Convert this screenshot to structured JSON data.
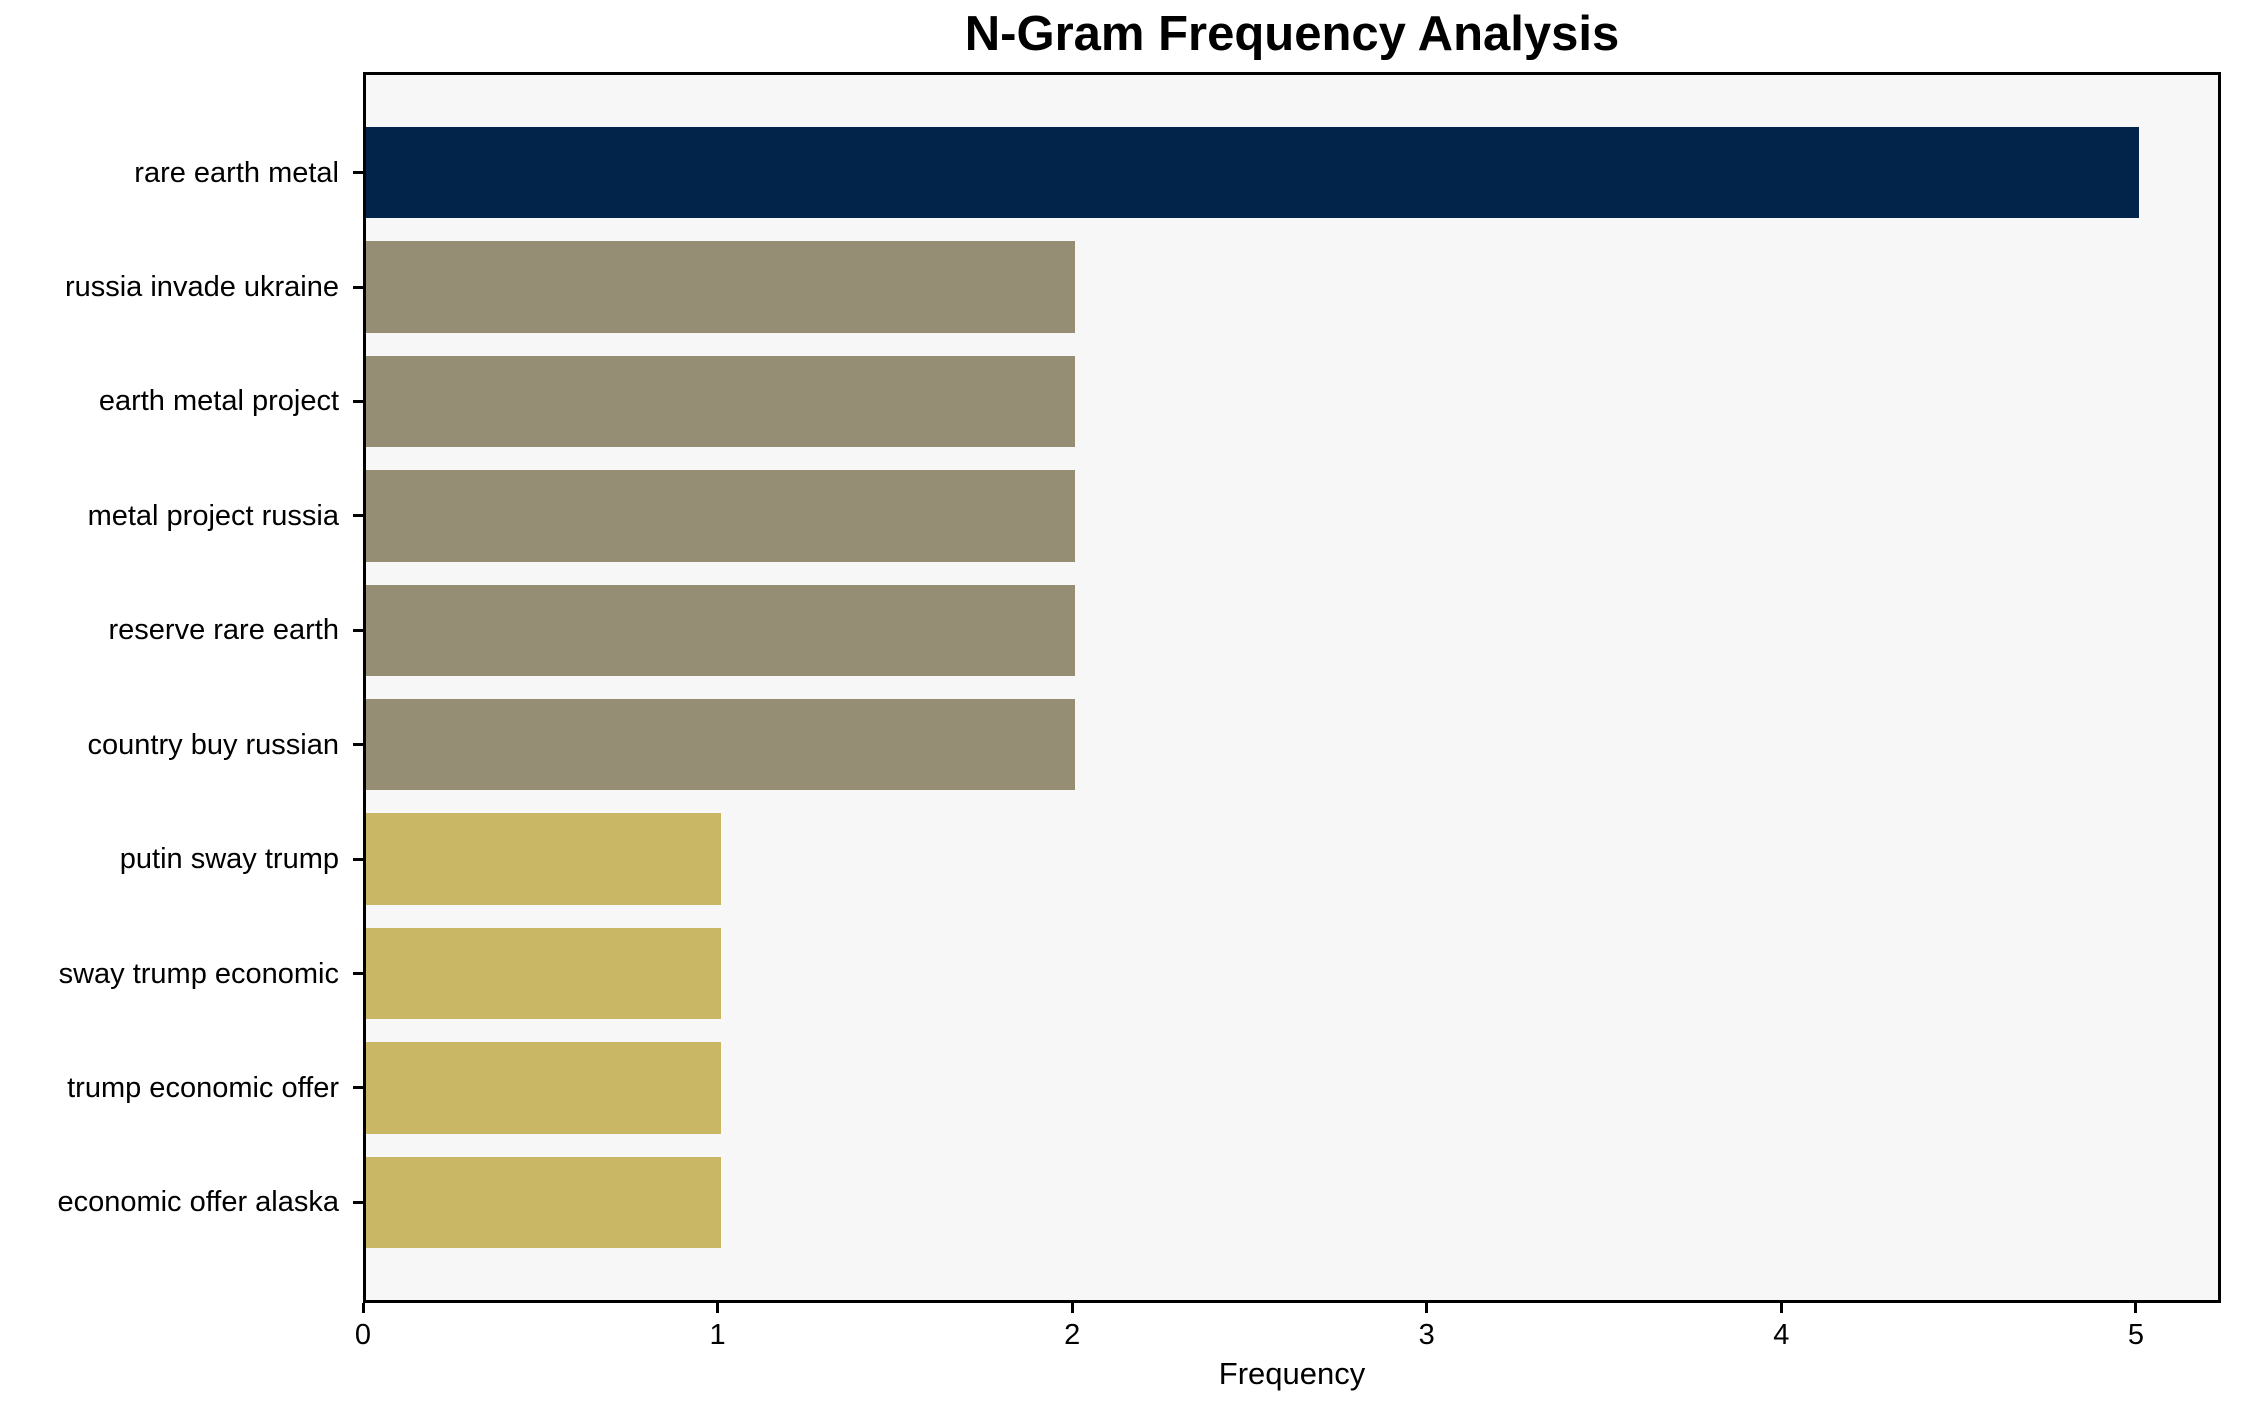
{
  "chart_data": {
    "type": "bar",
    "orientation": "horizontal",
    "title": "N-Gram Frequency Analysis",
    "xlabel": "Frequency",
    "ylabel": "",
    "categories": [
      "rare earth metal",
      "russia invade ukraine",
      "earth metal project",
      "metal project russia",
      "reserve rare earth",
      "country buy russian",
      "putin sway trump",
      "sway trump economic",
      "trump economic offer",
      "economic offer alaska"
    ],
    "values": [
      5,
      2,
      2,
      2,
      2,
      2,
      1,
      1,
      1,
      1
    ],
    "bar_colors": [
      "#02234a",
      "#958e74",
      "#958e74",
      "#958e74",
      "#958e74",
      "#958e74",
      "#c9b765",
      "#c9b765",
      "#c9b765",
      "#c9b765"
    ],
    "x_ticks": [
      0,
      1,
      2,
      3,
      4,
      5
    ],
    "xlim": [
      0,
      5.24
    ],
    "grid": false,
    "legend_position": "none",
    "plot_bg": "#f7f7f7",
    "frame_color": "#000000"
  }
}
